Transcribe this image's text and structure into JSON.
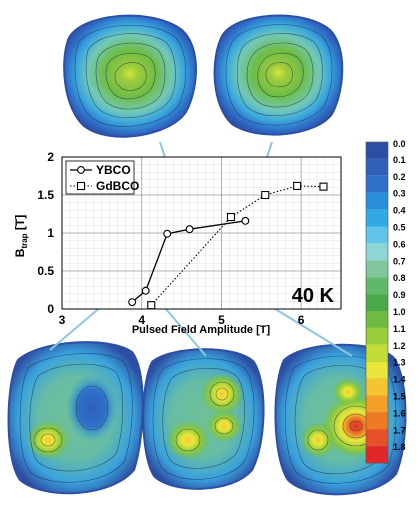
{
  "chart_data": {
    "type": "line",
    "xlabel": "Pulsed Field Amplitude [T]",
    "ylabel_main": "B",
    "ylabel_sub": "trap",
    "ylabel_unit": " [T]",
    "xlim": [
      3,
      6.5
    ],
    "ylim": [
      0,
      2
    ],
    "xticks": [
      "3",
      "4",
      "5",
      "6"
    ],
    "yticks": [
      "0",
      "0.5",
      "1",
      "1.5",
      "2"
    ],
    "grid": true,
    "legend_placement": "top-left",
    "annotation": "40 K",
    "series": [
      {
        "name": "YBCO",
        "marker": "circle",
        "line": "solid",
        "x": [
          3.88,
          4.05,
          4.32,
          4.6,
          5.3
        ],
        "y": [
          0.09,
          0.24,
          0.99,
          1.05,
          1.16
        ]
      },
      {
        "name": "GdBCO",
        "marker": "square",
        "line": "dotted",
        "x": [
          4.12,
          5.12,
          5.55,
          5.95,
          6.28
        ],
        "y": [
          0.05,
          1.21,
          1.5,
          1.62,
          1.61
        ]
      }
    ],
    "colorbar": {
      "labels": [
        "0.0",
        "0.1",
        "0.2",
        "0.3",
        "0.4",
        "0.5",
        "0.6",
        "0.7",
        "0.8",
        "0.9",
        "1.0",
        "1.1",
        "1.2",
        "1.3",
        "1.4",
        "1.5",
        "1.6",
        "1.7",
        "1.8"
      ],
      "colors": [
        "#2d4fa3",
        "#2f5fb8",
        "#2f70c9",
        "#2a8fda",
        "#31a9e2",
        "#5fc4e8",
        "#8fd4d7",
        "#7fc79a",
        "#5fb96a",
        "#4aa94a",
        "#6dbb3f",
        "#97cc3a",
        "#c3dc35",
        "#ebe63a",
        "#f7c431",
        "#f39f2a",
        "#ee7a25",
        "#e8502a",
        "#e2272a"
      ]
    },
    "colormaps": {
      "top": [
        {
          "position": "top-left",
          "level": 0.76
        },
        {
          "position": "top-right",
          "level": 0.76
        }
      ],
      "bottom": [
        {
          "position": "bottom-left",
          "level": 1.22
        },
        {
          "position": "bottom-middle",
          "level": 1.3
        },
        {
          "position": "bottom-right",
          "level": 1.72
        }
      ]
    }
  }
}
